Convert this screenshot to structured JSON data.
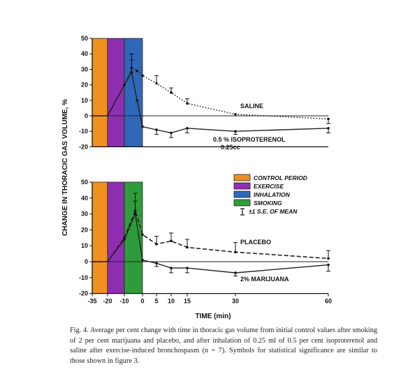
{
  "chart_data": [
    {
      "type": "line",
      "panel": "top",
      "ylabel": "CHANGE IN THORACIC GAS VOLUME, %",
      "xlabel": "TIME (min)",
      "ylim": [
        -20,
        50
      ],
      "xlim": [
        -35,
        60
      ],
      "yticks": [
        "-20",
        "-10",
        "0",
        "10",
        "20",
        "30",
        "40",
        "50"
      ],
      "bands": [
        {
          "name": "CONTROL PERIOD",
          "x": [
            -35,
            -20
          ],
          "color": "#f0901e"
        },
        {
          "name": "EXERCISE",
          "x": [
            -20,
            -10
          ],
          "color": "#8d2fb0"
        },
        {
          "name": "INHALATION",
          "x": [
            -10,
            0
          ],
          "color": "#2f68b8"
        }
      ],
      "series": [
        {
          "name": "SALINE",
          "style": "dotted",
          "color": "#222222",
          "x": [
            -35,
            -20,
            -10,
            -6,
            -3,
            0,
            5,
            10,
            15,
            30,
            60
          ],
          "y": [
            0,
            0,
            20,
            31,
            29,
            26,
            21,
            15,
            8,
            1,
            -2
          ],
          "err": [
            0,
            0,
            0,
            9,
            0,
            0,
            5,
            3,
            3,
            0,
            3
          ]
        },
        {
          "name": "0.5 % ISOPROTERENOL",
          "label_lines": [
            "0.5 % ISOPROTERENOL",
            "0.25cc"
          ],
          "style": "solid",
          "color": "#222222",
          "x": [
            -35,
            -20,
            -10,
            -6,
            -3,
            0,
            5,
            10,
            15,
            30,
            60
          ],
          "y": [
            0,
            0,
            20,
            28,
            10,
            -7,
            -9,
            -11,
            -8,
            -10,
            -8
          ],
          "err": [
            0,
            0,
            0,
            8,
            0,
            0,
            3,
            3,
            3,
            2,
            3
          ]
        },
        {
          "name": "",
          "style": "solid-thin",
          "color": "#222222",
          "x": [
            -35,
            60
          ],
          "y": [
            0,
            0
          ]
        }
      ]
    },
    {
      "type": "line",
      "panel": "bottom",
      "ylim": [
        -20,
        50
      ],
      "xlim": [
        -35,
        60
      ],
      "yticks": [
        "-20",
        "-10",
        "0",
        "10",
        "20",
        "30",
        "40",
        "50"
      ],
      "xticks": [
        "-35",
        "-20",
        "-10",
        "0",
        "5",
        "10",
        "15",
        "30",
        "60"
      ],
      "bands": [
        {
          "name": "CONTROL PERIOD",
          "x": [
            -35,
            -20
          ],
          "color": "#f0901e"
        },
        {
          "name": "EXERCISE",
          "x": [
            -20,
            -10
          ],
          "color": "#8d2fb0"
        },
        {
          "name": "SMOKING",
          "x": [
            -10,
            0
          ],
          "color": "#2e9c3a"
        }
      ],
      "series": [
        {
          "name": "PLACEBO",
          "style": "dashed",
          "color": "#222222",
          "x": [
            -35,
            -20,
            -10,
            -4,
            0,
            5,
            10,
            15,
            30,
            60
          ],
          "y": [
            0,
            0,
            15,
            32,
            17,
            11,
            13,
            9,
            6,
            2
          ],
          "err": [
            0,
            0,
            0,
            11,
            0,
            5,
            5,
            5,
            6,
            5
          ]
        },
        {
          "name": "2% MARIJUANA",
          "style": "solid",
          "color": "#222222",
          "x": [
            -35,
            -20,
            -10,
            -4,
            0,
            5,
            10,
            15,
            30,
            60
          ],
          "y": [
            0,
            0,
            14,
            30,
            1,
            -1,
            -4,
            -4,
            -7,
            -2
          ],
          "err": [
            0,
            0,
            0,
            8,
            0,
            2,
            3,
            3,
            2,
            4
          ]
        },
        {
          "name": "",
          "style": "solid-thin",
          "color": "#222222",
          "x": [
            -35,
            60
          ],
          "y": [
            0,
            0
          ]
        }
      ],
      "legend": [
        {
          "label": "CONTROL PERIOD",
          "color": "#f0901e"
        },
        {
          "label": "EXERCISE",
          "color": "#8d2fb0"
        },
        {
          "label": "INHALATION",
          "color": "#2f68b8"
        },
        {
          "label": "SMOKING",
          "color": "#2e9c3a"
        },
        {
          "label": "±1 S.E. OF MEAN",
          "symbol": "errorbar"
        }
      ]
    }
  ],
  "caption": "Fig. 4. Average per cent change with time in thoracic gas volume from initial control values after smoking of 2 per cent marijuana and placebo, and after inhalation of 0.25 ml of 0.5 per cent isoproterenol and saline after exercise-induced bronchospasm (n = 7). Symbols for statistical significance are similar to those shown in figure 3."
}
